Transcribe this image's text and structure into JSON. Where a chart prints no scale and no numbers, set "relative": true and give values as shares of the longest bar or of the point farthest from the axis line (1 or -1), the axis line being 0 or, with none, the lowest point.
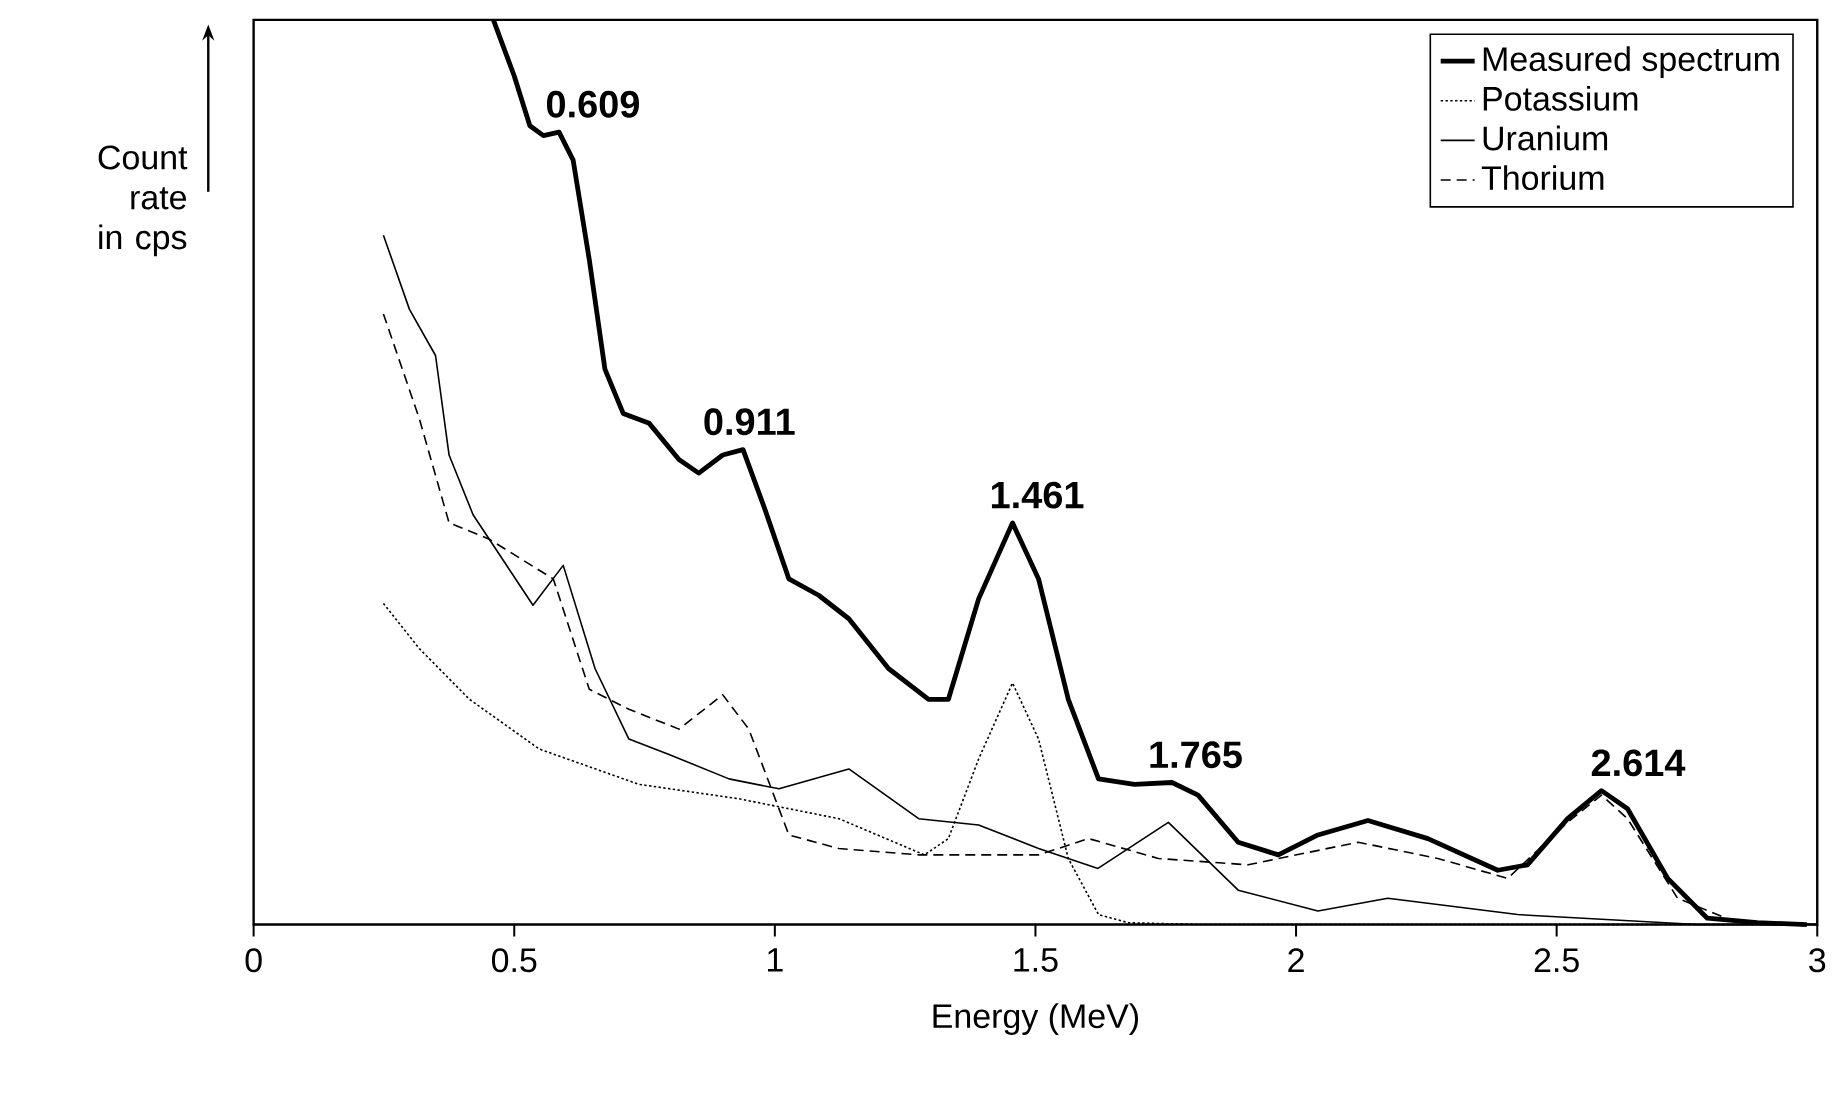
{
  "chart_data": {
    "type": "line",
    "relative": true,
    "xlabel": "Energy (MeV)",
    "ylabel": "Count rate in cps",
    "xlim": [
      0,
      3
    ],
    "xticks": [
      0,
      0.5,
      1,
      1.5,
      2,
      2.5,
      3
    ],
    "legend": "top right",
    "grid": false,
    "series": [
      {
        "name": "Measured spectrum",
        "color": "#000000",
        "line_style": "solid",
        "x": [
          0.46,
          0.5,
          0.53,
          0.556,
          0.586,
          0.613,
          0.644,
          0.674,
          0.709,
          0.759,
          0.816,
          0.854,
          0.9,
          0.939,
          0.981,
          1.027,
          1.084,
          1.142,
          1.218,
          1.295,
          1.333,
          1.391,
          1.456,
          1.506,
          1.563,
          1.621,
          1.69,
          1.762,
          1.812,
          1.889,
          1.966,
          2.042,
          2.138,
          2.253,
          2.387,
          2.444,
          2.521,
          2.586,
          2.636,
          2.713,
          2.789,
          2.885,
          2.98
        ],
        "values": [
          1.0,
          0.938,
          0.883,
          0.872,
          0.876,
          0.845,
          0.735,
          0.614,
          0.565,
          0.554,
          0.514,
          0.499,
          0.519,
          0.525,
          0.459,
          0.382,
          0.364,
          0.338,
          0.283,
          0.249,
          0.249,
          0.36,
          0.444,
          0.382,
          0.249,
          0.161,
          0.155,
          0.157,
          0.143,
          0.091,
          0.077,
          0.099,
          0.115,
          0.095,
          0.06,
          0.066,
          0.117,
          0.148,
          0.128,
          0.051,
          0.007,
          0.002,
          0
        ]
      },
      {
        "name": "Potassium",
        "color": "#000000",
        "line_style": "dotted",
        "x": [
          0.249,
          0.318,
          0.414,
          0.548,
          0.739,
          0.931,
          1.027,
          1.123,
          1.287,
          1.333,
          1.391,
          1.456,
          1.506,
          1.563,
          1.621,
          1.678,
          1.812,
          3.0
        ],
        "values": [
          0.355,
          0.305,
          0.249,
          0.194,
          0.155,
          0.139,
          0.128,
          0.117,
          0.077,
          0.095,
          0.183,
          0.267,
          0.205,
          0.073,
          0.011,
          0.002,
          0,
          0
        ]
      },
      {
        "name": "Uranium",
        "color": "#000000",
        "line_style": "solid",
        "x": [
          0.249,
          0.299,
          0.349,
          0.375,
          0.421,
          0.536,
          0.594,
          0.655,
          0.72,
          0.797,
          0.912,
          1.008,
          1.142,
          1.276,
          1.391,
          1.506,
          1.62,
          1.755,
          1.889,
          2.042,
          2.176,
          2.425,
          2.77,
          3.0
        ],
        "values": [
          0.762,
          0.68,
          0.629,
          0.519,
          0.453,
          0.353,
          0.397,
          0.283,
          0.205,
          0.188,
          0.161,
          0.15,
          0.172,
          0.117,
          0.11,
          0.084,
          0.062,
          0.113,
          0.038,
          0.015,
          0.029,
          0.011,
          0,
          0
        ]
      },
      {
        "name": "Thorium",
        "color": "#000000",
        "line_style": "dashed",
        "x": [
          0.249,
          0.318,
          0.375,
          0.452,
          0.575,
          0.644,
          0.72,
          0.816,
          0.9,
          0.95,
          1.027,
          1.123,
          1.276,
          1.391,
          1.506,
          1.602,
          1.736,
          1.908,
          2.119,
          2.272,
          2.406,
          2.521,
          2.586,
          2.636,
          2.732,
          2.847,
          3.0
        ],
        "values": [
          0.675,
          0.559,
          0.444,
          0.426,
          0.382,
          0.26,
          0.238,
          0.216,
          0.254,
          0.216,
          0.099,
          0.084,
          0.077,
          0.077,
          0.077,
          0.095,
          0.073,
          0.066,
          0.091,
          0.073,
          0.051,
          0.113,
          0.143,
          0.117,
          0.029,
          0.002,
          0
        ]
      }
    ],
    "annotations": [
      {
        "text": "0.609",
        "x": 0.609,
        "y": 0.876
      },
      {
        "text": "0.911",
        "x": 0.911,
        "y": 0.525
      },
      {
        "text": "1.461",
        "x": 1.461,
        "y": 0.444
      },
      {
        "text": "1.765",
        "x": 1.765,
        "y": 0.157
      },
      {
        "text": "2.614",
        "x": 2.614,
        "y": 0.148
      }
    ]
  }
}
